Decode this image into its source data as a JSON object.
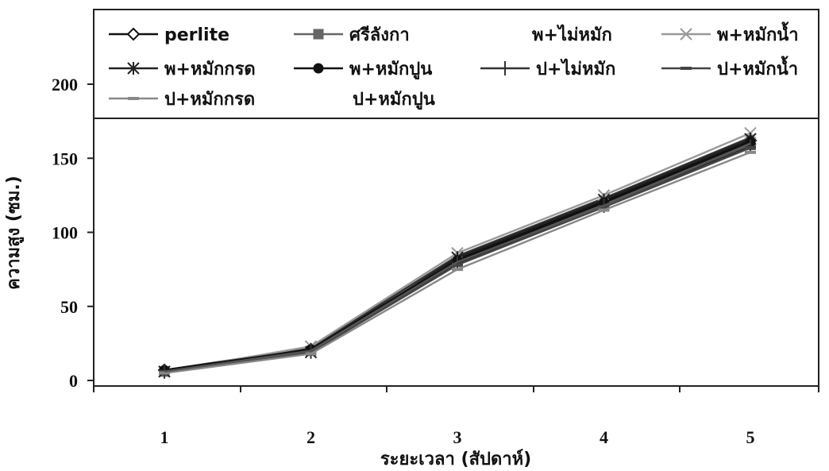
{
  "chart_data": {
    "type": "line",
    "xlabel": "ระยะเวลา (สัปดาห์)",
    "ylabel": "ความสูง (ซม.)",
    "x": [
      1,
      2,
      3,
      4,
      5
    ],
    "ylim": [
      0,
      200
    ],
    "yticks": [
      0,
      50,
      100,
      150,
      200
    ],
    "grid": false,
    "legend_position": "top",
    "series": [
      {
        "name": "perlite",
        "marker": "diamond",
        "color": "#111111",
        "values": [
          7,
          21,
          82,
          121,
          162
        ]
      },
      {
        "name": "ศรีลังกา",
        "marker": "square",
        "color": "#666666",
        "values": [
          6,
          20,
          80,
          119,
          159
        ]
      },
      {
        "name": "พ+ไม่หมัก",
        "marker": "none",
        "color": "#333333",
        "values": [
          7,
          22,
          84,
          123,
          164
        ]
      },
      {
        "name": "พ+หมักน้ำ",
        "marker": "x",
        "color": "#999999",
        "values": [
          6,
          23,
          86,
          125,
          167
        ]
      },
      {
        "name": "พ+หมักกรด",
        "marker": "star",
        "color": "#222222",
        "values": [
          6,
          19,
          83,
          122,
          163
        ]
      },
      {
        "name": "พ+หมักปูน",
        "marker": "circle",
        "color": "#111111",
        "values": [
          7,
          21,
          81,
          120,
          161
        ]
      },
      {
        "name": "ป+ไม่หมัก",
        "marker": "plus",
        "color": "#333333",
        "values": [
          6,
          20,
          79,
          118,
          158
        ]
      },
      {
        "name": "ป+หมักน้ำ",
        "marker": "dash",
        "color": "#444444",
        "values": [
          6,
          19,
          78,
          117,
          157
        ]
      },
      {
        "name": "ป+หมักกรด",
        "marker": "dash",
        "color": "#888888",
        "values": [
          5,
          18,
          75,
          115,
          154
        ]
      },
      {
        "name": "ป+หมักปูน",
        "marker": "none",
        "color": "#555555",
        "values": [
          6,
          20,
          80,
          118,
          160
        ]
      }
    ]
  }
}
